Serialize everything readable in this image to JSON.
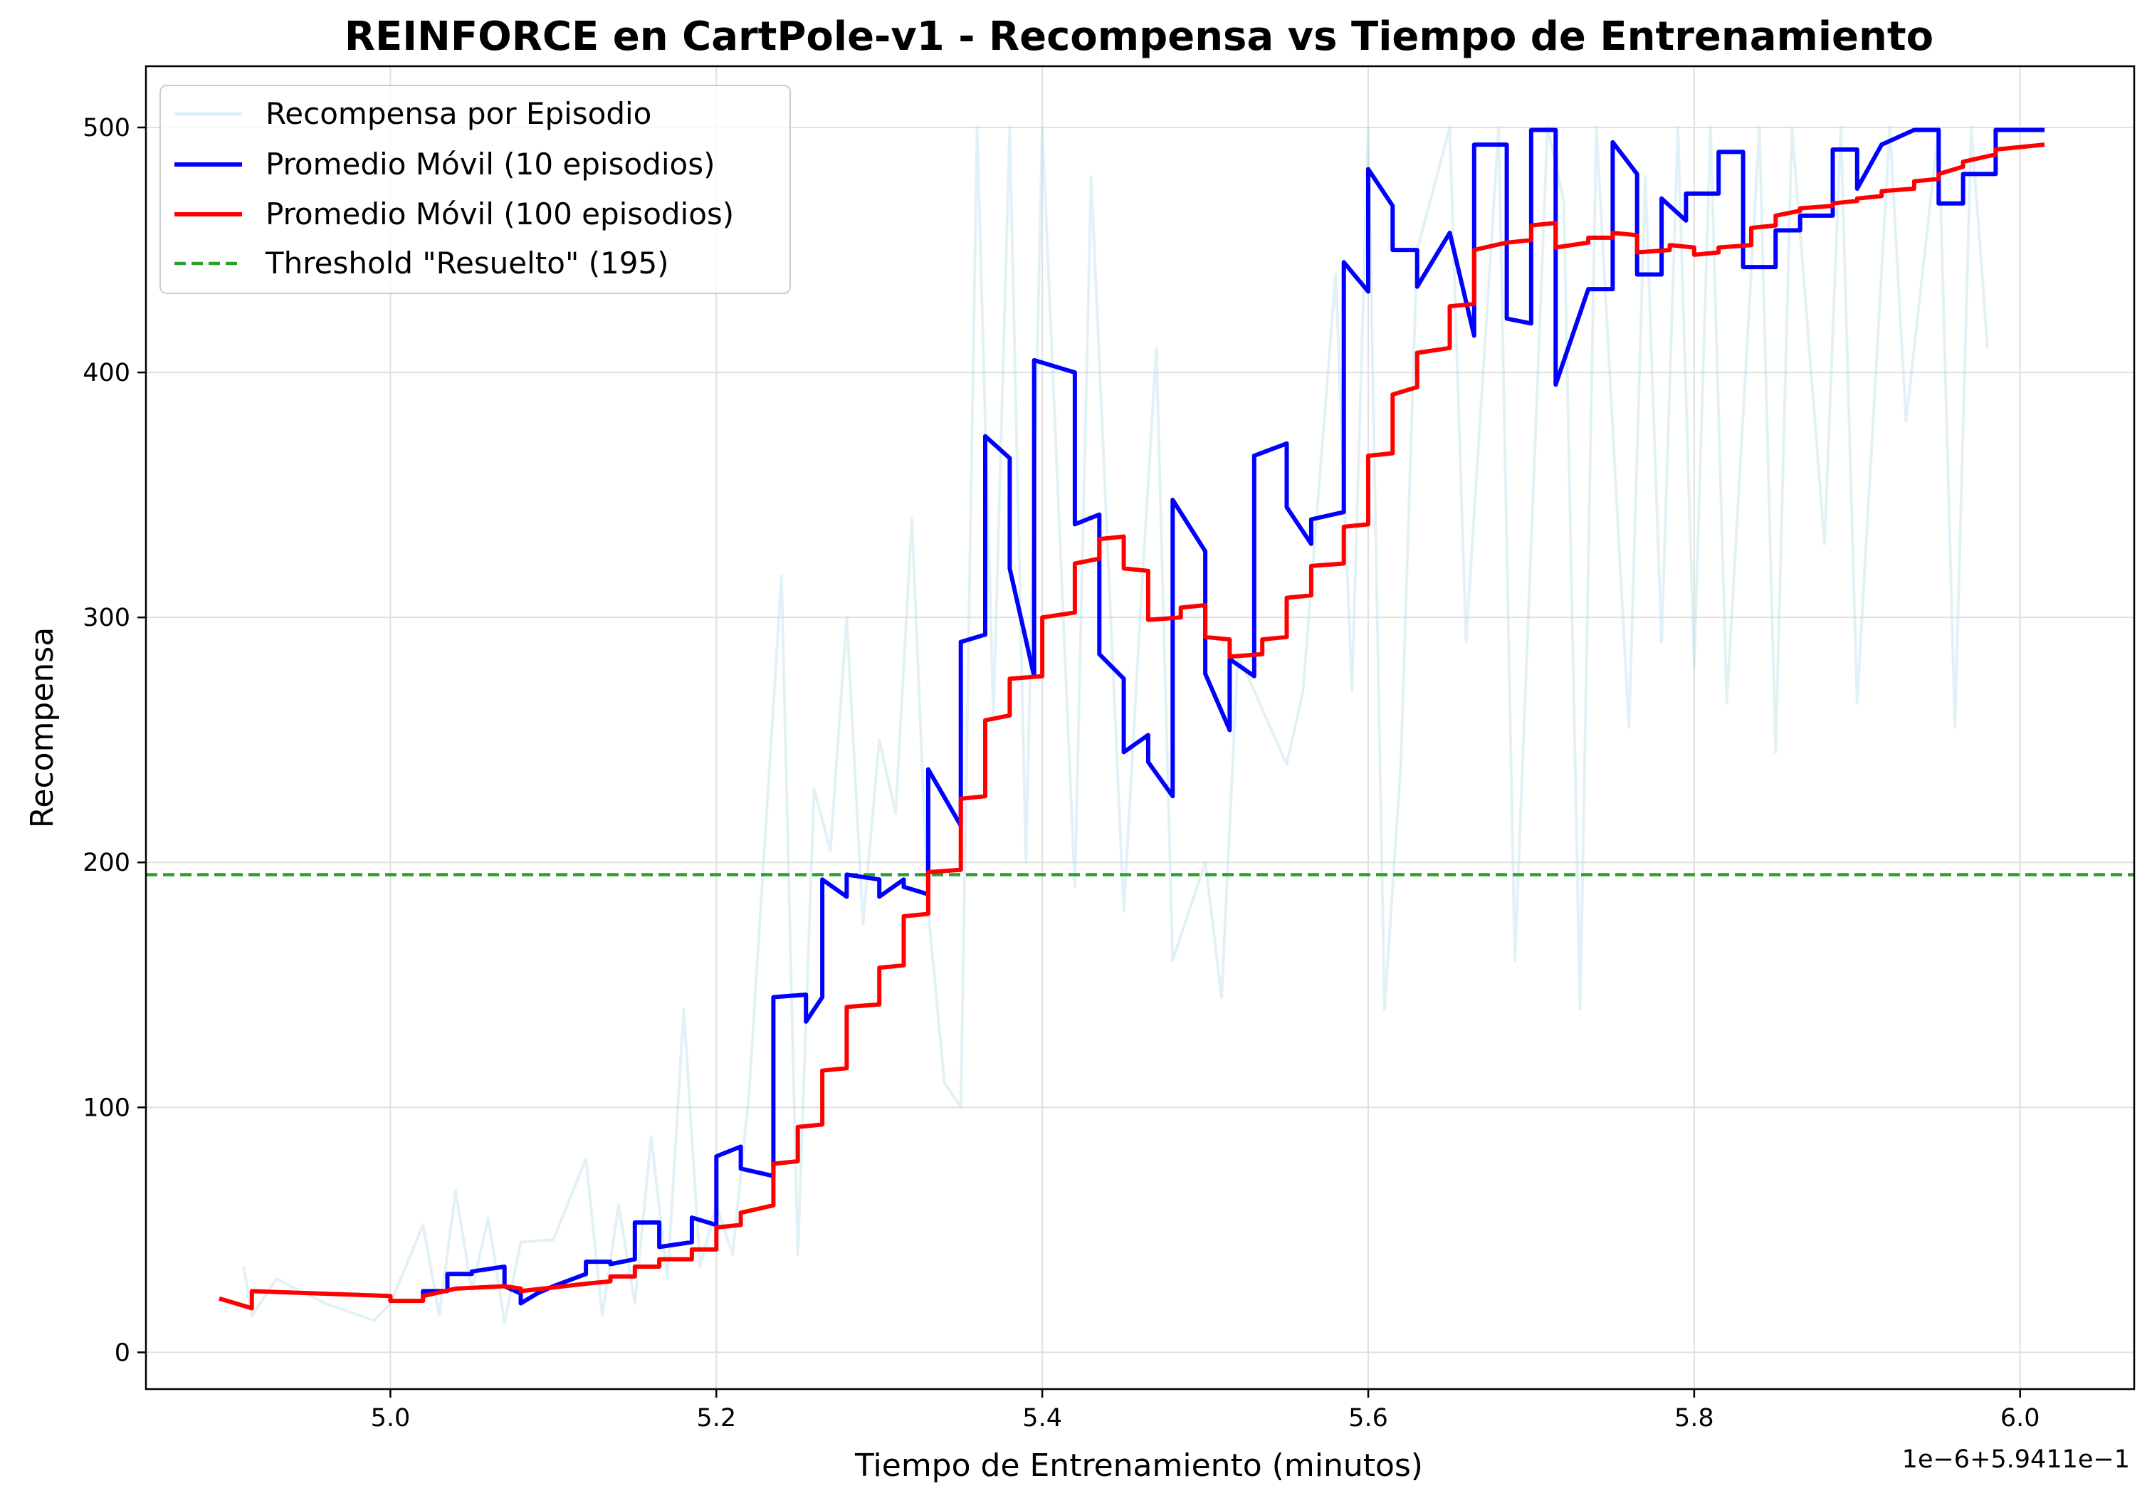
{
  "chart_data": {
    "type": "line",
    "title": "REINFORCE en CartPole-v1 - Recompensa vs Tiempo de Entrenamiento",
    "xlabel": "Tiempo de Entrenamiento (minutos)",
    "ylabel": "Recompensa",
    "x_offset_label": "1e−6+5.9411e−1",
    "xlim": [
      4.85,
      6.07
    ],
    "ylim": [
      -15,
      525
    ],
    "x_ticks": [
      5.0,
      5.2,
      5.4,
      5.6,
      5.8,
      6.0
    ],
    "x_tick_labels": [
      "5.0",
      "5.2",
      "5.4",
      "5.6",
      "5.8",
      "6.0"
    ],
    "y_ticks": [
      0,
      100,
      200,
      300,
      400,
      500
    ],
    "y_tick_labels": [
      "0",
      "100",
      "200",
      "300",
      "400",
      "500"
    ],
    "grid": true,
    "legend_position": "top-left",
    "threshold": 195,
    "series": [
      {
        "name": "Recompensa por Episodio",
        "color": "#add8e6",
        "style": "solid-faint",
        "x": [
          4.91,
          4.915,
          4.93,
          4.96,
          4.99,
          5.0,
          5.02,
          5.03,
          5.04,
          5.05,
          5.06,
          5.07,
          5.08,
          5.1,
          5.12,
          5.13,
          5.14,
          5.15,
          5.16,
          5.17,
          5.18,
          5.19,
          5.2,
          5.21,
          5.22,
          5.24,
          5.25,
          5.26,
          5.27,
          5.28,
          5.29,
          5.3,
          5.31,
          5.32,
          5.33,
          5.34,
          5.35,
          5.36,
          5.37,
          5.38,
          5.39,
          5.4,
          5.42,
          5.43,
          5.45,
          5.46,
          5.47,
          5.48,
          5.5,
          5.51,
          5.52,
          5.53,
          5.55,
          5.56,
          5.58,
          5.59,
          5.6,
          5.61,
          5.62,
          5.63,
          5.65,
          5.66,
          5.68,
          5.69,
          5.71,
          5.72,
          5.73,
          5.74,
          5.76,
          5.77,
          5.78,
          5.79,
          5.8,
          5.81,
          5.82,
          5.84,
          5.85,
          5.86,
          5.88,
          5.89,
          5.9,
          5.92,
          5.93,
          5.95,
          5.96,
          5.97,
          5.98
        ],
        "values": [
          35,
          15,
          30,
          20,
          13,
          20,
          52,
          15,
          66,
          25,
          55,
          12,
          45,
          46,
          79,
          15,
          60,
          20,
          88,
          30,
          140,
          35,
          60,
          40,
          105,
          317,
          40,
          230,
          205,
          300,
          175,
          250,
          220,
          340,
          180,
          110,
          100,
          500,
          260,
          500,
          200,
          500,
          190,
          480,
          180,
          300,
          410,
          160,
          200,
          145,
          285,
          270,
          240,
          270,
          440,
          270,
          500,
          140,
          240,
          450,
          500,
          290,
          500,
          160,
          500,
          470,
          140,
          500,
          255,
          480,
          290,
          500,
          280,
          500,
          265,
          500,
          245,
          500,
          330,
          500,
          265,
          500,
          380,
          500,
          255,
          500,
          410
        ]
      },
      {
        "name": "Promedio Móvil (10 episodios)",
        "color": "#0000ff",
        "style": "solid",
        "x": [
          5.02,
          5.02,
          5.035,
          5.035,
          5.05,
          5.05,
          5.07,
          5.07,
          5.08,
          5.08,
          5.09,
          5.1,
          5.12,
          5.12,
          5.135,
          5.135,
          5.15,
          5.15,
          5.165,
          5.165,
          5.185,
          5.185,
          5.2,
          5.2,
          5.215,
          5.215,
          5.235,
          5.235,
          5.255,
          5.255,
          5.265,
          5.265,
          5.28,
          5.28,
          5.3,
          5.3,
          5.315,
          5.315,
          5.33,
          5.33,
          5.35,
          5.35,
          5.365,
          5.365,
          5.38,
          5.38,
          5.395,
          5.395,
          5.42,
          5.42,
          5.435,
          5.435,
          5.45,
          5.45,
          5.465,
          5.465,
          5.48,
          5.48,
          5.5,
          5.5,
          5.515,
          5.515,
          5.53,
          5.53,
          5.55,
          5.55,
          5.565,
          5.565,
          5.585,
          5.585,
          5.6,
          5.6,
          5.615,
          5.615,
          5.63,
          5.63,
          5.65,
          5.65,
          5.665,
          5.665,
          5.685,
          5.685,
          5.7,
          5.7,
          5.715,
          5.715,
          5.735,
          5.735,
          5.75,
          5.75,
          5.765,
          5.765,
          5.78,
          5.78,
          5.795,
          5.795,
          5.815,
          5.815,
          5.83,
          5.83,
          5.85,
          5.85,
          5.865,
          5.865,
          5.885,
          5.885,
          5.9,
          5.9,
          5.915,
          5.915,
          5.935,
          5.935,
          5.95,
          5.95,
          5.965,
          5.965,
          5.985,
          5.985,
          6.015
        ],
        "values": [
          22,
          25,
          25,
          32,
          32,
          33,
          35,
          27,
          24,
          20,
          24,
          27,
          32,
          37,
          37,
          36,
          38,
          53,
          53,
          43,
          45,
          55,
          52,
          80,
          84,
          75,
          72,
          145,
          146,
          135,
          145,
          193,
          186,
          195,
          193,
          186,
          193,
          190,
          187,
          238,
          215,
          290,
          293,
          374,
          365,
          320,
          276,
          405,
          400,
          338,
          342,
          285,
          275,
          245,
          252,
          241,
          227,
          348,
          327,
          277,
          254,
          283,
          276,
          366,
          371,
          345,
          330,
          340,
          343,
          445,
          433,
          483,
          468,
          450,
          450,
          435,
          457,
          457,
          415,
          493,
          493,
          422,
          420,
          499,
          499,
          395,
          434,
          434,
          434,
          494,
          481,
          440,
          440,
          471,
          462,
          473,
          473,
          490,
          490,
          443,
          443,
          458,
          458,
          464,
          464,
          491,
          491,
          475,
          493,
          493,
          499,
          499,
          499,
          469,
          469,
          481,
          481,
          499,
          499
        ]
      },
      {
        "name": "Promedio Móvil (100 episodios)",
        "color": "#ff0000",
        "style": "solid",
        "x": [
          4.895,
          4.91,
          4.915,
          4.915,
          5.0,
          5.0,
          5.02,
          5.02,
          5.04,
          5.07,
          5.08,
          5.08,
          5.12,
          5.135,
          5.135,
          5.15,
          5.15,
          5.165,
          5.165,
          5.185,
          5.185,
          5.2,
          5.2,
          5.215,
          5.215,
          5.235,
          5.235,
          5.25,
          5.25,
          5.265,
          5.265,
          5.28,
          5.28,
          5.3,
          5.3,
          5.315,
          5.315,
          5.33,
          5.33,
          5.35,
          5.35,
          5.365,
          5.365,
          5.38,
          5.38,
          5.4,
          5.4,
          5.42,
          5.42,
          5.435,
          5.435,
          5.45,
          5.45,
          5.465,
          5.465,
          5.485,
          5.485,
          5.5,
          5.5,
          5.515,
          5.515,
          5.535,
          5.535,
          5.55,
          5.55,
          5.565,
          5.565,
          5.585,
          5.585,
          5.6,
          5.6,
          5.615,
          5.615,
          5.63,
          5.63,
          5.65,
          5.65,
          5.665,
          5.665,
          5.685,
          5.685,
          5.7,
          5.7,
          5.715,
          5.715,
          5.735,
          5.735,
          5.75,
          5.75,
          5.765,
          5.765,
          5.785,
          5.785,
          5.8,
          5.8,
          5.815,
          5.815,
          5.835,
          5.835,
          5.85,
          5.85,
          5.865,
          5.865,
          5.885,
          5.885,
          5.9,
          5.9,
          5.915,
          5.915,
          5.935,
          5.935,
          5.95,
          5.95,
          5.965,
          5.965,
          5.985,
          5.985,
          6.015
        ],
        "values": [
          22,
          19,
          18,
          25,
          23,
          21,
          21,
          23,
          26,
          27,
          26,
          25,
          28,
          29,
          31,
          31,
          35,
          35,
          38,
          38,
          42,
          42,
          51,
          52,
          57,
          60,
          77,
          78,
          92,
          93,
          115,
          116,
          141,
          142,
          157,
          158,
          178,
          179,
          196,
          197,
          226,
          227,
          258,
          260,
          275,
          276,
          300,
          302,
          322,
          324,
          332,
          333,
          320,
          319,
          299,
          300,
          304,
          305,
          292,
          291,
          284,
          285,
          291,
          292,
          308,
          309,
          321,
          322,
          337,
          338,
          366,
          367,
          391,
          394,
          408,
          410,
          427,
          428,
          450,
          453,
          453,
          454,
          460,
          461,
          451,
          453,
          455,
          455,
          457,
          456,
          449,
          450,
          452,
          451,
          448,
          449,
          451,
          452,
          459,
          460,
          464,
          466,
          467,
          468,
          469,
          470,
          471,
          472,
          474,
          475,
          478,
          479,
          481,
          484,
          486,
          489,
          491,
          493
        ]
      },
      {
        "name": "Threshold \"Resuelto\" (195)",
        "color": "#2ca02c",
        "style": "dashed",
        "values": [
          195
        ]
      }
    ]
  },
  "colors": {
    "episode": "#add8e6",
    "ma10": "#0000ff",
    "ma100": "#ff0000",
    "threshold": "#2ca02c",
    "grid": "#e0e0e0"
  }
}
